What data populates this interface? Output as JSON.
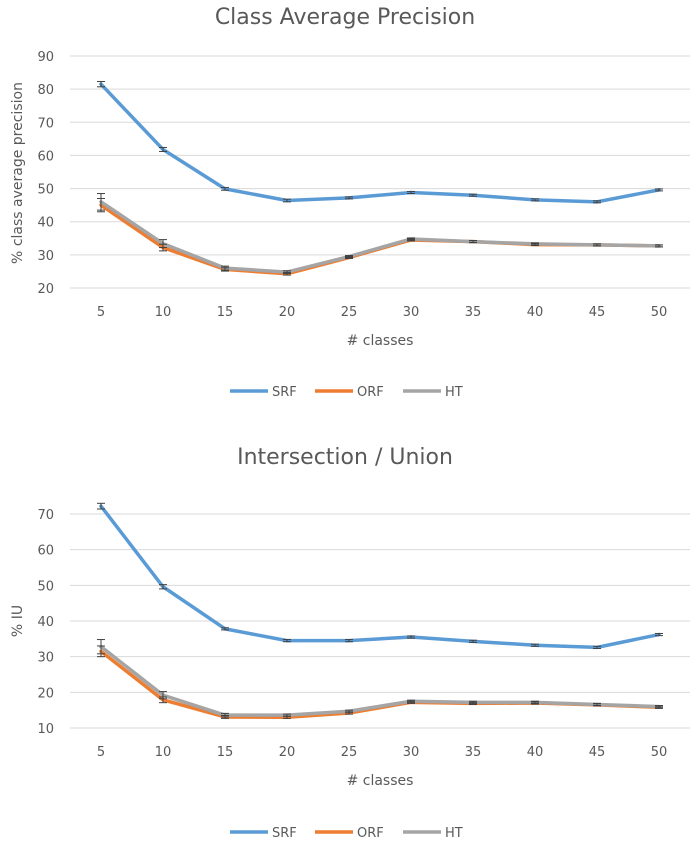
{
  "colors": {
    "SRF": "#5b9bd5",
    "ORF": "#ed7d31",
    "HT": "#a5a5a5"
  },
  "chart_data": [
    {
      "type": "line",
      "title": "Class Average Precision",
      "xlabel": "# classes",
      "ylabel": "% class average precision",
      "categories": [
        "5",
        "10",
        "15",
        "20",
        "25",
        "30",
        "35",
        "40",
        "45",
        "50"
      ],
      "ylim": [
        20,
        90
      ],
      "yticks": [
        20,
        30,
        40,
        50,
        60,
        70,
        80,
        90
      ],
      "grid": true,
      "legend": "bottom",
      "series": [
        {
          "name": "SRF",
          "values": [
            81.5,
            61.8,
            49.9,
            46.4,
            47.2,
            48.8,
            48.0,
            46.6,
            46.0,
            49.6
          ],
          "error": [
            0.8,
            0.6,
            0.4,
            0.4,
            0.3,
            0.3,
            0.3,
            0.3,
            0.3,
            0.3
          ]
        },
        {
          "name": "ORF",
          "values": [
            45.0,
            32.2,
            25.6,
            24.3,
            29.2,
            34.5,
            34.0,
            33.1,
            33.0,
            32.7
          ],
          "error": [
            2.0,
            1.0,
            0.5,
            0.4,
            0.3,
            0.3,
            0.3,
            0.3,
            0.3,
            0.3
          ]
        },
        {
          "name": "HT",
          "values": [
            46.0,
            33.4,
            26.0,
            24.8,
            29.5,
            34.8,
            34.0,
            33.3,
            33.0,
            32.7
          ],
          "error": [
            2.5,
            1.2,
            0.6,
            0.4,
            0.3,
            0.3,
            0.3,
            0.3,
            0.3,
            0.3
          ]
        }
      ]
    },
    {
      "type": "line",
      "title": "Intersection / Union",
      "xlabel": "# classes",
      "ylabel": "% IU",
      "categories": [
        "5",
        "10",
        "15",
        "20",
        "25",
        "30",
        "35",
        "40",
        "45",
        "50"
      ],
      "ylim": [
        10,
        70
      ],
      "yticks": [
        10,
        20,
        30,
        40,
        50,
        60,
        70
      ],
      "grid": true,
      "legend": "bottom",
      "series": [
        {
          "name": "SRF",
          "values": [
            72.2,
            49.6,
            37.8,
            34.5,
            34.5,
            35.5,
            34.3,
            33.2,
            32.6,
            36.2
          ],
          "error": [
            0.8,
            0.6,
            0.3,
            0.3,
            0.3,
            0.3,
            0.3,
            0.3,
            0.3,
            0.3
          ]
        },
        {
          "name": "ORF",
          "values": [
            31.5,
            17.9,
            13.1,
            13.0,
            14.2,
            17.2,
            16.9,
            17.0,
            16.5,
            15.8
          ],
          "error": [
            1.5,
            0.8,
            0.4,
            0.3,
            0.3,
            0.3,
            0.3,
            0.3,
            0.3,
            0.3
          ]
        },
        {
          "name": "HT",
          "values": [
            32.8,
            19.2,
            13.6,
            13.6,
            14.7,
            17.5,
            17.2,
            17.2,
            16.6,
            16.0
          ],
          "error": [
            2.0,
            1.0,
            0.5,
            0.3,
            0.3,
            0.3,
            0.3,
            0.3,
            0.3,
            0.3
          ]
        }
      ]
    }
  ]
}
